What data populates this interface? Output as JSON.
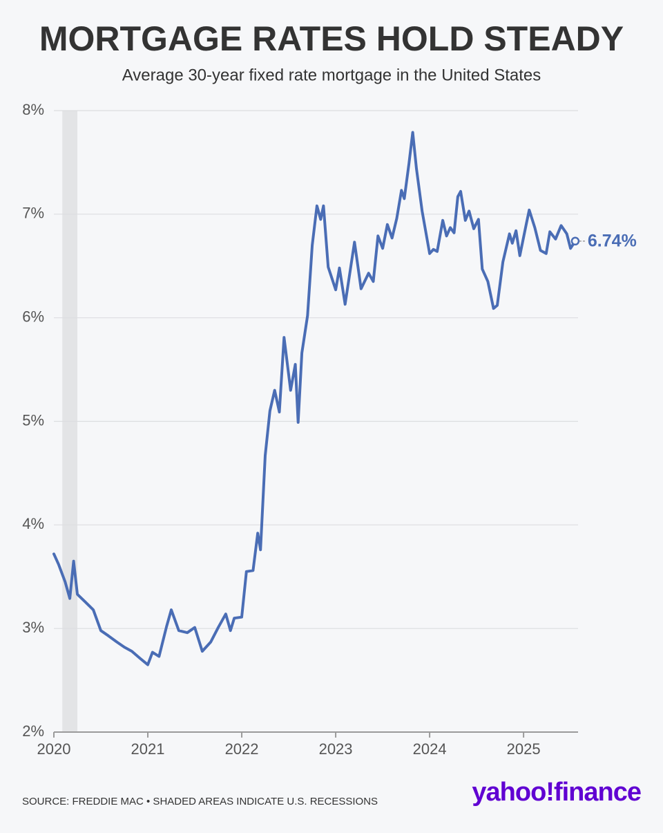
{
  "chart_data": {
    "type": "line",
    "title": "MORTGAGE RATES HOLD STEADY",
    "subtitle": "Average 30-year fixed rate mortgage in the United States",
    "source": "SOURCE: FREDDIE MAC • SHADED AREAS INDICATE U.S. RECESSIONS",
    "logo": "yahoo!finance",
    "xlim": [
      2020,
      2025.58
    ],
    "xticks": [
      2020,
      2021,
      2022,
      2023,
      2024,
      2025
    ],
    "ylim": [
      2,
      8
    ],
    "yticks": [
      {
        "value": 2,
        "label": "2%"
      },
      {
        "value": 3,
        "label": "3%"
      },
      {
        "value": 4,
        "label": "4%"
      },
      {
        "value": 5,
        "label": "5%"
      },
      {
        "value": 6,
        "label": "6%"
      },
      {
        "value": 7,
        "label": "7%"
      },
      {
        "value": 8,
        "label": "8%"
      }
    ],
    "grid": true,
    "recessions": [
      [
        2020.09,
        2020.25
      ]
    ],
    "recession_color": "#e3e4e6",
    "x": [
      2020.0,
      2020.05,
      2020.12,
      2020.17,
      2020.21,
      2020.25,
      2020.33,
      2020.42,
      2020.5,
      2020.58,
      2020.67,
      2020.75,
      2020.83,
      2020.92,
      2021.0,
      2021.05,
      2021.12,
      2021.2,
      2021.25,
      2021.33,
      2021.42,
      2021.5,
      2021.58,
      2021.67,
      2021.75,
      2021.83,
      2021.88,
      2021.92,
      2022.0,
      2022.05,
      2022.12,
      2022.17,
      2022.2,
      2022.25,
      2022.3,
      2022.35,
      2022.4,
      2022.45,
      2022.52,
      2022.57,
      2022.6,
      2022.64,
      2022.7,
      2022.75,
      2022.8,
      2022.84,
      2022.87,
      2022.92,
      2023.0,
      2023.04,
      2023.1,
      2023.2,
      2023.27,
      2023.35,
      2023.4,
      2023.45,
      2023.5,
      2023.55,
      2023.6,
      2023.65,
      2023.7,
      2023.73,
      2023.78,
      2023.82,
      2023.86,
      2023.92,
      2024.0,
      2024.04,
      2024.08,
      2024.14,
      2024.18,
      2024.22,
      2024.26,
      2024.3,
      2024.33,
      2024.38,
      2024.42,
      2024.47,
      2024.52,
      2024.56,
      2024.62,
      2024.68,
      2024.72,
      2024.78,
      2024.85,
      2024.88,
      2024.92,
      2024.96,
      2025.03,
      2025.06,
      2025.12,
      2025.18,
      2025.24,
      2025.28,
      2025.34,
      2025.4,
      2025.46,
      2025.5,
      2025.55
    ],
    "series": [
      {
        "color": "#4a6db5",
        "values": [
          3.72,
          3.62,
          3.45,
          3.29,
          3.65,
          3.33,
          3.26,
          3.18,
          2.98,
          2.93,
          2.87,
          2.82,
          2.78,
          2.71,
          2.65,
          2.77,
          2.73,
          3.02,
          3.18,
          2.98,
          2.96,
          3.01,
          2.78,
          2.87,
          3.01,
          3.14,
          2.98,
          3.1,
          3.11,
          3.55,
          3.56,
          3.92,
          3.76,
          4.67,
          5.1,
          5.3,
          5.09,
          5.81,
          5.3,
          5.55,
          4.99,
          5.66,
          6.02,
          6.7,
          7.08,
          6.95,
          7.08,
          6.49,
          6.27,
          6.48,
          6.13,
          6.73,
          6.28,
          6.43,
          6.35,
          6.79,
          6.67,
          6.9,
          6.77,
          6.96,
          7.23,
          7.15,
          7.49,
          7.79,
          7.44,
          7.03,
          6.62,
          6.66,
          6.64,
          6.94,
          6.79,
          6.87,
          6.82,
          7.17,
          7.22,
          6.94,
          7.03,
          6.86,
          6.95,
          6.47,
          6.35,
          6.09,
          6.12,
          6.54,
          6.81,
          6.72,
          6.84,
          6.6,
          6.91,
          7.04,
          6.87,
          6.65,
          6.62,
          6.83,
          6.76,
          6.89,
          6.81,
          6.67,
          6.74
        ],
        "value_labels": [
          null,
          null,
          null,
          null,
          null,
          null,
          null,
          null,
          null,
          null,
          null,
          null,
          null,
          null,
          null,
          null,
          null,
          null,
          null,
          null,
          null,
          null,
          null,
          null,
          null,
          null,
          null,
          null,
          null,
          null,
          null,
          null,
          null,
          null,
          null,
          null,
          null,
          null,
          null,
          null,
          null,
          null,
          null,
          null,
          null,
          null,
          null,
          null,
          null,
          null,
          null,
          null,
          null,
          null,
          null,
          null,
          null,
          null,
          null,
          null,
          null,
          null,
          null,
          null,
          null,
          null,
          null,
          null,
          null,
          null,
          null,
          null,
          null,
          null,
          null,
          null,
          null,
          null,
          null,
          null,
          null,
          null,
          null,
          null,
          null,
          null,
          null,
          null,
          null,
          null,
          null,
          null,
          null,
          null,
          null,
          null,
          null,
          null,
          "6.74%"
        ]
      }
    ]
  }
}
